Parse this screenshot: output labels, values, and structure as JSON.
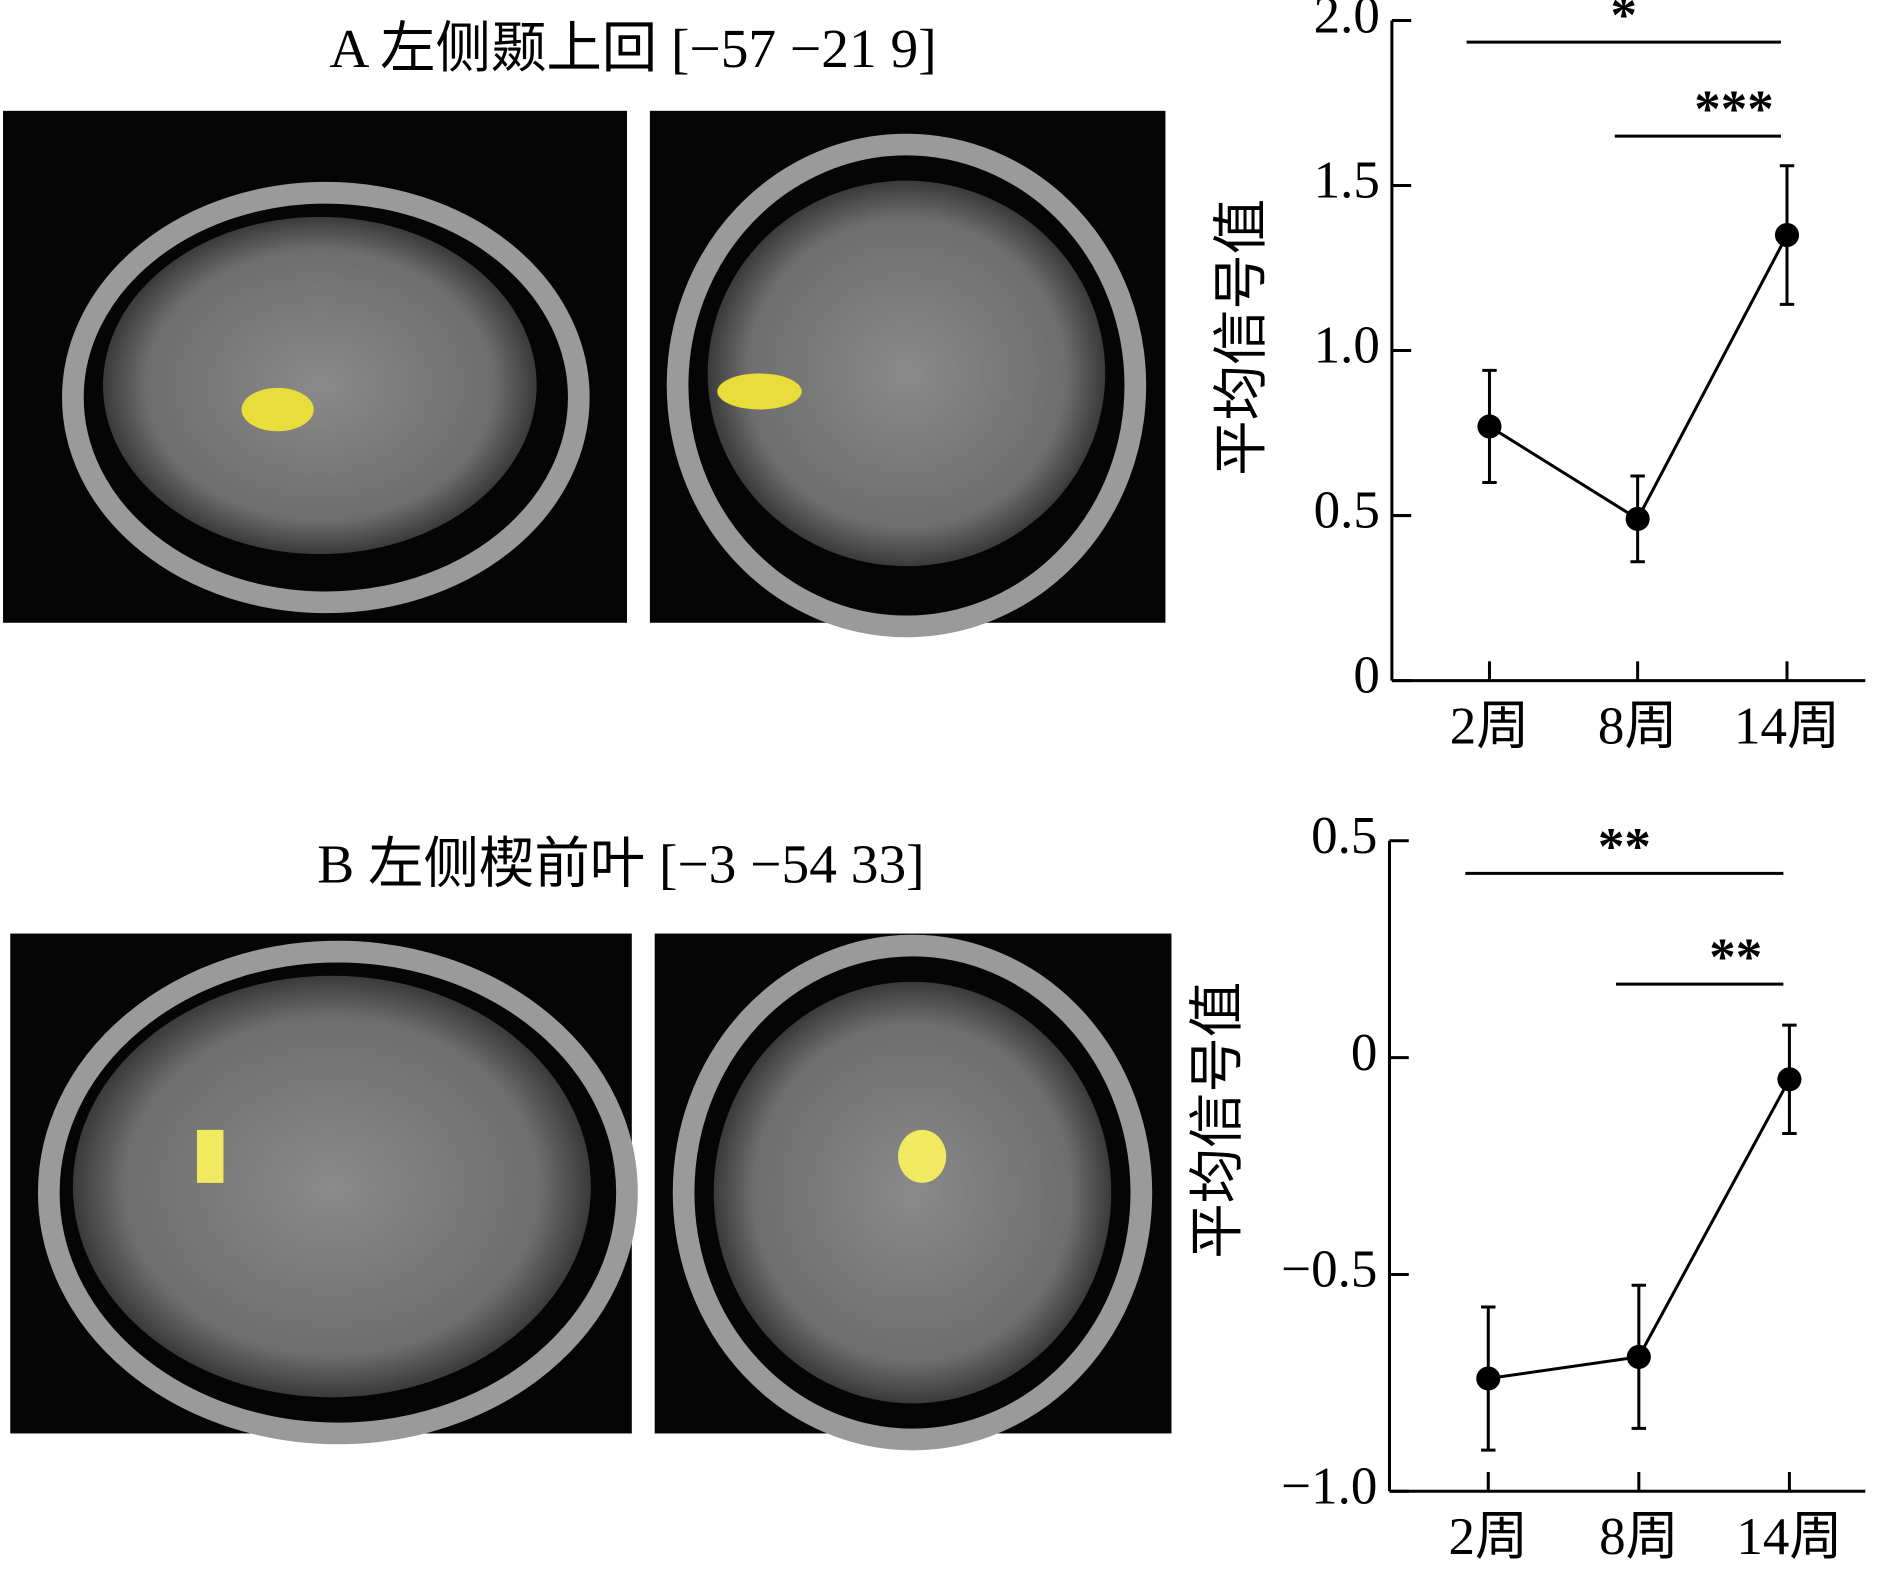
{
  "chart_data": [
    {
      "type": "line",
      "title": "A 左侧颞上回 [−57 −21 9]",
      "ylabel": "平均信号值",
      "categories": [
        "2周",
        "8周",
        "14周"
      ],
      "series": [
        {
          "color": "#000000",
          "values": [
            0.77,
            0.49,
            1.35
          ],
          "errors": [
            0.17,
            0.13,
            0.21
          ]
        }
      ],
      "ylim": [
        0,
        2
      ],
      "yticks": [
        0,
        0.5,
        {
          "value": 1,
          "label": "1.0"
        },
        1.5,
        {
          "value": 2,
          "label": "2.0"
        }
      ],
      "significance": [
        {
          "from": 0,
          "to": 2,
          "label": "*"
        },
        {
          "from": 1,
          "to": 2,
          "label": "***"
        }
      ]
    },
    {
      "type": "line",
      "title": "B 左侧楔前叶 [−3 −54 33]",
      "ylabel": "平均信号值",
      "categories": [
        "2周",
        "8周",
        "14周"
      ],
      "series": [
        {
          "color": "#000000",
          "values": [
            -0.74,
            -0.69,
            -0.05
          ],
          "errors": [
            0.165,
            0.165,
            0.125
          ]
        }
      ],
      "ylim": [
        -1,
        0.5
      ],
      "yticks": [
        {
          "value": -1,
          "label": "−1.0"
        },
        {
          "value": -0.5,
          "label": "−0.5"
        },
        0,
        0.5
      ],
      "significance": [
        {
          "from": 0,
          "to": 2,
          "label": "**"
        },
        {
          "from": 1,
          "to": 2,
          "label": "**"
        }
      ]
    }
  ]
}
